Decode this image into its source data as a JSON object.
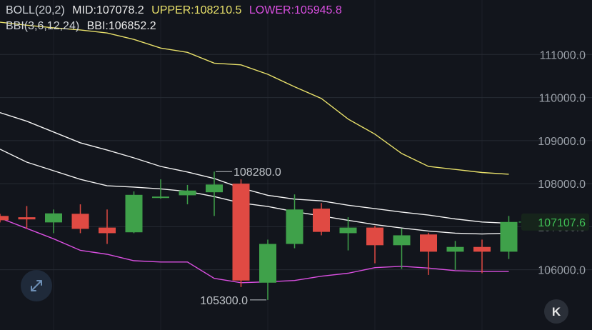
{
  "legend": {
    "boll_label": "BOLL(20,2)",
    "mid_text": "MID:107078.2",
    "upper_text": "UPPER:108210.5",
    "lower_text": "LOWER:105945.8",
    "bbi_label": "BBI(3,6,12,24)",
    "bbi_text": "BBI:106852.2"
  },
  "colors": {
    "background": "#12151c",
    "grid": "#262b33",
    "up": "#3fa14a",
    "down": "#e04a43",
    "upper": "#e8e06a",
    "lower": "#d94fe0",
    "mid": "#f2f2f2",
    "bbi": "#f2f2f2",
    "axis_text": "#9aa0a8",
    "legend_text": "#cfd3d8",
    "current_price": "#3fbf55"
  },
  "controls": {
    "expand_icon": "expand-arrows-icon",
    "collapse_icon": "collapse-k-icon",
    "collapse_glyph": "K"
  },
  "chart_data": {
    "type": "candlestick",
    "y_axis": {
      "min": 104800,
      "max": 112100,
      "ticks": [
        "106000.0",
        "107000.0",
        "108000.0",
        "109000.0",
        "110000.0",
        "111000.0"
      ],
      "tick_values": [
        106000,
        107000,
        108000,
        109000,
        110000,
        111000
      ]
    },
    "grid": true,
    "current_price": 107107.6,
    "current_price_label": "107107.6",
    "annotations": [
      {
        "label": "108280.0",
        "value": 108280,
        "candle_index": 8
      },
      {
        "label": "105300.0",
        "value": 105300,
        "candle_index": 10
      }
    ],
    "candles": [
      {
        "open": 107250,
        "close": 107150,
        "high": 107300,
        "low": 107100
      },
      {
        "open": 107220,
        "close": 107170,
        "high": 107480,
        "low": 106950
      },
      {
        "open": 107100,
        "close": 107310,
        "high": 107400,
        "low": 106850
      },
      {
        "open": 107300,
        "close": 106950,
        "high": 107520,
        "low": 106850
      },
      {
        "open": 106980,
        "close": 106850,
        "high": 107400,
        "low": 106600
      },
      {
        "open": 106870,
        "close": 107740,
        "high": 107820,
        "low": 106850
      },
      {
        "open": 107700,
        "close": 107700,
        "high": 108100,
        "low": 107650
      },
      {
        "open": 107730,
        "close": 107840,
        "high": 107970,
        "low": 107520
      },
      {
        "open": 107800,
        "close": 107980,
        "high": 108280,
        "low": 107250
      },
      {
        "open": 108000,
        "close": 105750,
        "high": 108100,
        "low": 105600
      },
      {
        "open": 105700,
        "close": 106600,
        "high": 106700,
        "low": 105300
      },
      {
        "open": 106600,
        "close": 107400,
        "high": 107750,
        "low": 106500
      },
      {
        "open": 107420,
        "close": 106880,
        "high": 107550,
        "low": 106800
      },
      {
        "open": 106850,
        "close": 106980,
        "high": 107220,
        "low": 106450
      },
      {
        "open": 106980,
        "close": 106570,
        "high": 107020,
        "low": 106150
      },
      {
        "open": 106570,
        "close": 106800,
        "high": 106960,
        "low": 106020
      },
      {
        "open": 106820,
        "close": 106420,
        "high": 106860,
        "low": 105880
      },
      {
        "open": 106420,
        "close": 106530,
        "high": 106670,
        "low": 106000
      },
      {
        "open": 106530,
        "close": 106420,
        "high": 106700,
        "low": 105920
      },
      {
        "open": 106420,
        "close": 107110,
        "high": 107250,
        "low": 106250
      }
    ],
    "series": [
      {
        "name": "UPPER",
        "values": [
          111750,
          111680,
          111620,
          111570,
          111500,
          111350,
          111150,
          111050,
          110800,
          110760,
          110540,
          110250,
          109980,
          109500,
          109150,
          108700,
          108400,
          108330,
          108260,
          108220
        ]
      },
      {
        "name": "MID",
        "values": [
          109650,
          109450,
          109200,
          108950,
          108780,
          108600,
          108400,
          108270,
          108120,
          107900,
          107730,
          107640,
          107600,
          107500,
          107420,
          107340,
          107270,
          107180,
          107110,
          107080
        ]
      },
      {
        "name": "LOWER",
        "values": [
          107200,
          106960,
          106720,
          106450,
          106360,
          106210,
          106180,
          106180,
          105800,
          105700,
          105720,
          105750,
          105850,
          105920,
          106050,
          106080,
          106040,
          105980,
          105960,
          105960
        ]
      },
      {
        "name": "BBI",
        "values": [
          108800,
          108500,
          108300,
          108100,
          107950,
          107920,
          107880,
          107820,
          107700,
          107550,
          107470,
          107350,
          107250,
          107150,
          107050,
          106970,
          106900,
          106850,
          106830,
          106850
        ]
      }
    ]
  }
}
